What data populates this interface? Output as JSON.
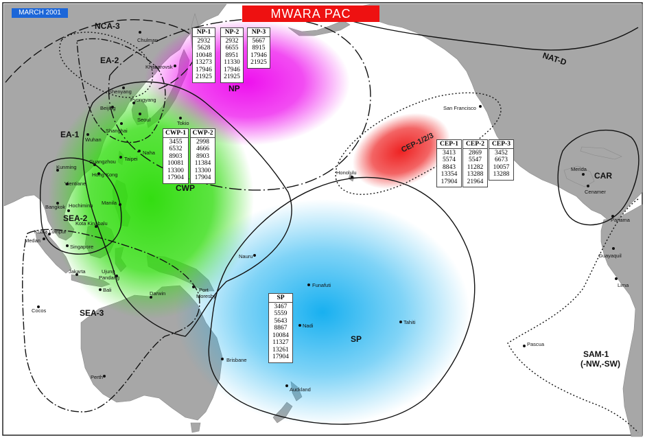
{
  "header": {
    "title": "MWARA PAC",
    "date": "MARCH 2001"
  },
  "colors": {
    "title_bg": "#ee1111",
    "date_bg": "#1c66d8",
    "land": "#a7a7a7",
    "np_zone": "#ee11ee",
    "cwp_zone": "#33dd11",
    "sp_zone": "#18b0f0",
    "cep_zone": "#ee2222"
  },
  "regions": {
    "nca3": "NCA-3",
    "ea2": "EA-2",
    "ea1": "EA-1",
    "sea2": "SEA-2",
    "sea3": "SEA-3",
    "np": "NP",
    "cwp": "CWP",
    "sp": "SP",
    "cep": "CEP-1/2/3",
    "natd": "NAT-D",
    "car": "CAR",
    "sam1_line1": "SAM-1",
    "sam1_line2": "(-NW,-SW)"
  },
  "cities": {
    "chulman": "Chulman",
    "khabarovsk": "Khabarovsk",
    "shenyang": "Shenyang",
    "pyongyang": "Pyongyang",
    "beijing": "Beijing",
    "seoul": "Seoul",
    "shanghai": "Shanghai",
    "tokio": "Tokio",
    "wuhan": "Wuhan",
    "naha": "Naha",
    "taipei": "Taipei",
    "kunming": "Kunming",
    "guangzhou": "Guangzhou",
    "hongkong": "Hong Kong",
    "vientiane": "Vientiane",
    "bangkok": "Bangkok",
    "hochiminh": "Hochiminh",
    "manila": "Manila",
    "kotakinabalu": "Kota Kinabalu",
    "kualalumpur": "Kuala Lumpur",
    "medan": "Medan",
    "singapore": "Singapore",
    "jakarta": "Jakarta",
    "ujung": "Ujung",
    "pandang": "Pandang",
    "bali": "Bali",
    "darwin": "Darwin",
    "portmoresby1": "Port",
    "portmoresby2": "Moresby",
    "cocos": "Cocos",
    "perth": "Perth",
    "brisbane": "Brisbane",
    "nauru": "Nauru",
    "funafuti": "Funafuti",
    "nadi": "Nadi",
    "tahiti": "Tahiti",
    "auckland": "Auckland",
    "honolulu": "Honolulu",
    "sanfrancisco": "San Francisco",
    "merida": "Merida",
    "cenamer": "Cenamer",
    "panama": "Panama",
    "guayaquil": "Guayaquil",
    "lima": "Lima",
    "pascua": "Pascua"
  },
  "tables": {
    "np1": {
      "header": "NP-1",
      "values": [
        "2932",
        "5628",
        "10048",
        "13273",
        "17946",
        "21925"
      ]
    },
    "np2": {
      "header": "NP-2",
      "values": [
        "2932",
        "6655",
        "8951",
        "11330",
        "17946",
        "21925"
      ]
    },
    "np3": {
      "header": "NP-3",
      "values": [
        "5667",
        "8915",
        "17946",
        "21925"
      ]
    },
    "cwp1": {
      "header": "CWP-1",
      "values": [
        "3455",
        "6532",
        "8903",
        "10081",
        "13300",
        "17904"
      ]
    },
    "cwp2": {
      "header": "CWP-2",
      "values": [
        "2998",
        "4666",
        "8903",
        "11384",
        "13300",
        "17904"
      ]
    },
    "cep1": {
      "header": "CEP-1",
      "values": [
        "3413",
        "5574",
        "8843",
        "13354",
        "17904"
      ]
    },
    "cep2": {
      "header": "CEP-2",
      "values": [
        "2869",
        "5547",
        "11282",
        "13288",
        "21964"
      ]
    },
    "cep3": {
      "header": "CEP-3",
      "values": [
        "3452",
        "6673",
        "10057",
        "13288"
      ]
    },
    "sp": {
      "header": "SP",
      "values": [
        "3467",
        "5559",
        "5643",
        "8867",
        "10084",
        "11327",
        "13261",
        "17904"
      ]
    }
  }
}
